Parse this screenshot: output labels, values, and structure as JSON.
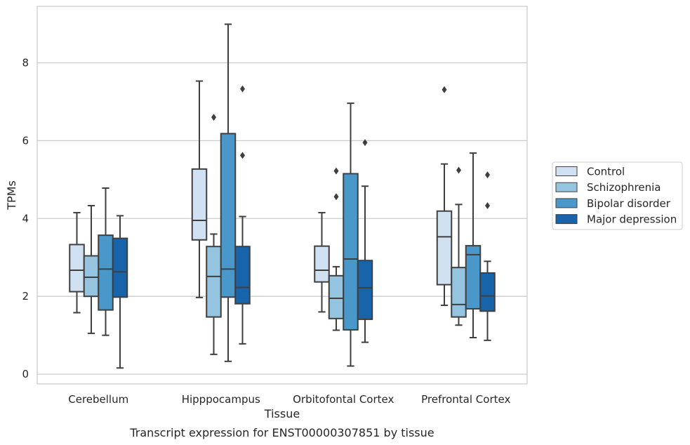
{
  "chart_data": {
    "type": "box",
    "title": "",
    "caption": "Transcript expression for ENST00000307851 by tissue",
    "xlabel": "Tissue",
    "ylabel": "TPMs",
    "ylim": [
      -0.25,
      9.45
    ],
    "yticks": [
      0,
      2,
      4,
      6,
      8
    ],
    "grid": "horizontal",
    "legend_position": "right",
    "categories": [
      "Cerebellum",
      "Hipppocampus",
      "Orbitofontal Cortex",
      "Prefrontal Cortex"
    ],
    "series": [
      {
        "name": "Control",
        "color": "#d0e1f2",
        "boxes": [
          {
            "whislo": 1.58,
            "q1": 2.12,
            "med": 2.67,
            "q3": 3.33,
            "whishi": 4.15,
            "fliers": []
          },
          {
            "whislo": 1.97,
            "q1": 3.45,
            "med": 3.95,
            "q3": 5.27,
            "whishi": 7.53,
            "fliers": []
          },
          {
            "whislo": 1.6,
            "q1": 2.37,
            "med": 2.67,
            "q3": 3.29,
            "whishi": 4.15,
            "fliers": []
          },
          {
            "whislo": 1.77,
            "q1": 2.3,
            "med": 3.53,
            "q3": 4.19,
            "whishi": 5.4,
            "fliers": [
              7.31
            ]
          }
        ]
      },
      {
        "name": "Schizophrenia",
        "color": "#94c4df",
        "boxes": [
          {
            "whislo": 1.05,
            "q1": 2.0,
            "med": 2.49,
            "q3": 3.04,
            "whishi": 4.33,
            "fliers": []
          },
          {
            "whislo": 0.51,
            "q1": 1.47,
            "med": 2.51,
            "q3": 3.28,
            "whishi": 3.6,
            "fliers": [
              6.6
            ]
          },
          {
            "whislo": 1.13,
            "q1": 1.43,
            "med": 1.95,
            "q3": 2.53,
            "whishi": 2.76,
            "fliers": [
              4.56,
              5.22
            ]
          },
          {
            "whislo": 1.26,
            "q1": 1.47,
            "med": 1.79,
            "q3": 2.74,
            "whishi": 4.36,
            "fliers": [
              5.24
            ]
          }
        ]
      },
      {
        "name": "Bipolar disorder",
        "color": "#4a98c9",
        "boxes": [
          {
            "whislo": 1.0,
            "q1": 1.65,
            "med": 2.7,
            "q3": 3.57,
            "whishi": 4.78,
            "fliers": []
          },
          {
            "whislo": 0.33,
            "q1": 1.98,
            "med": 2.7,
            "q3": 6.18,
            "whishi": 8.99,
            "fliers": []
          },
          {
            "whislo": 0.21,
            "q1": 1.14,
            "med": 2.96,
            "q3": 5.15,
            "whishi": 6.96,
            "fliers": []
          },
          {
            "whislo": 0.94,
            "q1": 1.68,
            "med": 3.07,
            "q3": 3.3,
            "whishi": 5.68,
            "fliers": []
          }
        ]
      },
      {
        "name": "Major depression",
        "color": "#1764ab",
        "boxes": [
          {
            "whislo": 0.16,
            "q1": 1.98,
            "med": 2.63,
            "q3": 3.49,
            "whishi": 4.07,
            "fliers": []
          },
          {
            "whislo": 0.78,
            "q1": 1.81,
            "med": 2.23,
            "q3": 3.28,
            "whishi": 4.05,
            "fliers": [
              5.62,
              7.33
            ]
          },
          {
            "whislo": 0.82,
            "q1": 1.41,
            "med": 2.22,
            "q3": 2.92,
            "whishi": 4.83,
            "fliers": [
              5.95
            ]
          },
          {
            "whislo": 0.87,
            "q1": 1.62,
            "med": 2.01,
            "q3": 2.6,
            "whishi": 2.9,
            "fliers": [
              4.33,
              5.12
            ]
          }
        ]
      }
    ]
  }
}
